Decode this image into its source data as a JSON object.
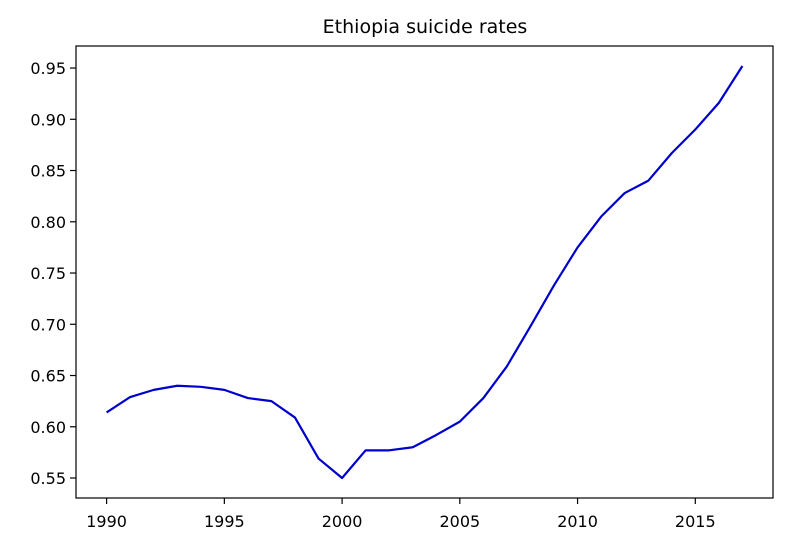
{
  "chart_data": {
    "type": "line",
    "title": "Ethiopia suicide rates",
    "xlabel": "",
    "ylabel": "",
    "xlim": [
      1988.7,
      2018.3
    ],
    "ylim": [
      0.5305,
      0.9715
    ],
    "xticks": [
      1990,
      1995,
      2000,
      2005,
      2010,
      2015
    ],
    "yticks": [
      0.55,
      0.6,
      0.65,
      0.7,
      0.75,
      0.8,
      0.85,
      0.9,
      0.95
    ],
    "grid": false,
    "legend": "none",
    "series": [
      {
        "color": "#0000cd",
        "x": [
          1990,
          1991,
          1992,
          1993,
          1994,
          1995,
          1996,
          1997,
          1998,
          1999,
          2000,
          2001,
          2002,
          2003,
          2004,
          2005,
          2006,
          2007,
          2008,
          2009,
          2010,
          2011,
          2012,
          2013,
          2014,
          2015,
          2016,
          2017
        ],
        "y": [
          0.614,
          0.629,
          0.636,
          0.64,
          0.639,
          0.636,
          0.628,
          0.625,
          0.609,
          0.569,
          0.55,
          0.577,
          0.577,
          0.58,
          0.592,
          0.605,
          0.628,
          0.659,
          0.698,
          0.738,
          0.775,
          0.805,
          0.828,
          0.84,
          0.867,
          0.89,
          0.916,
          0.952
        ]
      }
    ]
  }
}
